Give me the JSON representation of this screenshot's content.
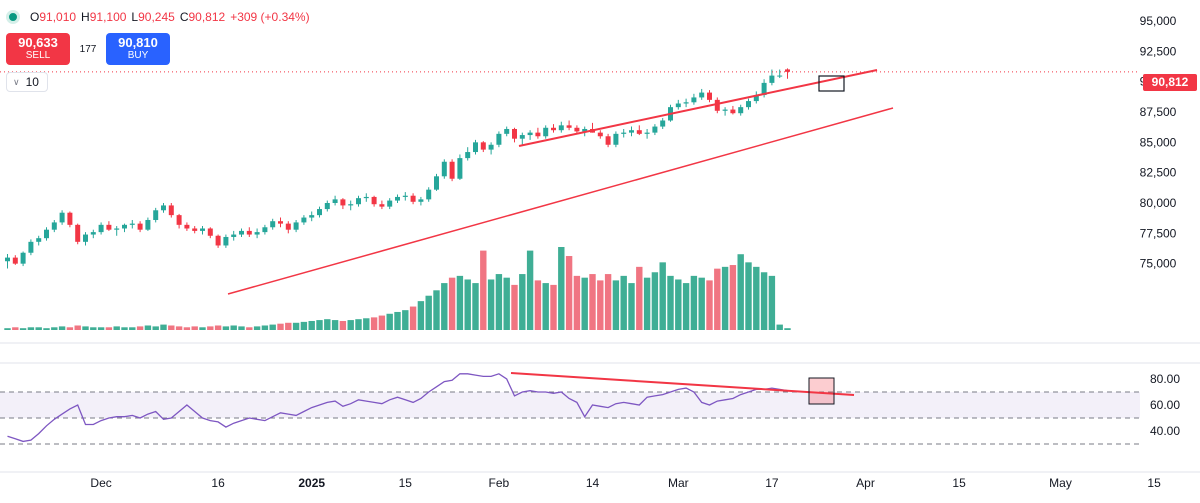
{
  "header": {
    "open_label": "O",
    "open_value": "91,010",
    "high_label": "H",
    "high_value": "91,100",
    "low_label": "L",
    "low_value": "90,245",
    "close_label": "C",
    "close_value": "90,812",
    "change": "+309 (+0.34%)"
  },
  "trade": {
    "sell_price": "90,633",
    "sell_label": "SELL",
    "spread": "177",
    "buy_price": "90,810",
    "buy_label": "BUY",
    "quantity": "10"
  },
  "last_price_label": "90,812",
  "colors": {
    "up": "#26a69a",
    "down": "#f23645",
    "volume_up": "#3fae95",
    "volume_down": "#f07582",
    "rsi_line": "#7e57c2",
    "trendline": "#f23645"
  },
  "chart_data": [
    {
      "type": "candlestick",
      "title": "",
      "y_axis_ticks": [
        95000,
        92500,
        90000,
        87500,
        85000,
        82500,
        80000,
        77500,
        75000
      ],
      "ylim": [
        73000,
        96000
      ],
      "x_tick_labels": [
        "15",
        "Dec",
        "16",
        "2025",
        "15",
        "Feb",
        "14",
        "Mar",
        "17",
        "Apr",
        "15",
        "May",
        "15"
      ],
      "x_tick_index": [
        -3,
        12,
        27,
        39,
        51,
        63,
        75,
        86,
        98,
        110,
        122,
        135,
        147
      ],
      "last_price": 90812,
      "candles": [
        [
          75200,
          75800,
          74600,
          75500
        ],
        [
          75500,
          75700,
          74900,
          75000
        ],
        [
          75000,
          76000,
          74800,
          75900
        ],
        [
          75900,
          77000,
          75700,
          76800
        ],
        [
          76800,
          77300,
          76500,
          77100
        ],
        [
          77100,
          78000,
          76900,
          77800
        ],
        [
          77800,
          78600,
          77600,
          78400
        ],
        [
          78400,
          79400,
          78200,
          79200
        ],
        [
          79200,
          79300,
          78000,
          78200
        ],
        [
          78200,
          78300,
          76600,
          76800
        ],
        [
          76800,
          77600,
          76500,
          77400
        ],
        [
          77400,
          77800,
          77100,
          77600
        ],
        [
          77600,
          78400,
          77400,
          78200
        ],
        [
          78200,
          78500,
          77700,
          77800
        ],
        [
          77800,
          78100,
          77300,
          77900
        ],
        [
          77900,
          78300,
          77600,
          78200
        ],
        [
          78200,
          78600,
          77900,
          78300
        ],
        [
          78300,
          78500,
          77600,
          77800
        ],
        [
          77800,
          78800,
          77700,
          78600
        ],
        [
          78600,
          79600,
          78400,
          79400
        ],
        [
          79400,
          80000,
          79200,
          79800
        ],
        [
          79800,
          80000,
          78800,
          79000
        ],
        [
          79000,
          79100,
          77900,
          78200
        ],
        [
          78200,
          78400,
          77700,
          77900
        ],
        [
          77900,
          78100,
          77500,
          77700
        ],
        [
          77700,
          78100,
          77400,
          77900
        ],
        [
          77900,
          78000,
          77100,
          77300
        ],
        [
          77300,
          77400,
          76300,
          76500
        ],
        [
          76500,
          77400,
          76300,
          77200
        ],
        [
          77200,
          77700,
          76900,
          77400
        ],
        [
          77400,
          77900,
          77200,
          77700
        ],
        [
          77700,
          78000,
          77200,
          77400
        ],
        [
          77400,
          77900,
          77100,
          77600
        ],
        [
          77600,
          78200,
          77400,
          78000
        ],
        [
          78000,
          78700,
          77800,
          78500
        ],
        [
          78500,
          78800,
          78000,
          78300
        ],
        [
          78300,
          78500,
          77500,
          77800
        ],
        [
          77800,
          78600,
          77600,
          78400
        ],
        [
          78400,
          79000,
          78200,
          78800
        ],
        [
          78800,
          79300,
          78500,
          79000
        ],
        [
          79000,
          79700,
          78800,
          79500
        ],
        [
          79500,
          80200,
          79300,
          80000
        ],
        [
          80000,
          80600,
          79800,
          80300
        ],
        [
          80300,
          80400,
          79500,
          79800
        ],
        [
          79800,
          80200,
          79400,
          79900
        ],
        [
          79900,
          80600,
          79700,
          80400
        ],
        [
          80400,
          80800,
          80100,
          80500
        ],
        [
          80500,
          80600,
          79700,
          79900
        ],
        [
          79900,
          80200,
          79500,
          79700
        ],
        [
          79700,
          80400,
          79500,
          80200
        ],
        [
          80200,
          80700,
          80000,
          80500
        ],
        [
          80500,
          80900,
          80200,
          80600
        ],
        [
          80600,
          80800,
          79900,
          80100
        ],
        [
          80100,
          80500,
          79800,
          80300
        ],
        [
          80300,
          81300,
          80100,
          81100
        ],
        [
          81100,
          82400,
          81000,
          82200
        ],
        [
          82200,
          83600,
          82000,
          83400
        ],
        [
          83400,
          83600,
          81800,
          82000
        ],
        [
          82000,
          84000,
          81900,
          83700
        ],
        [
          83700,
          84600,
          83500,
          84200
        ],
        [
          84200,
          85200,
          84000,
          85000
        ],
        [
          85000,
          85100,
          84200,
          84400
        ],
        [
          84400,
          85000,
          84000,
          84800
        ],
        [
          84800,
          85900,
          84600,
          85700
        ],
        [
          85700,
          86300,
          85500,
          86100
        ],
        [
          86100,
          86200,
          85000,
          85300
        ],
        [
          85300,
          85800,
          84700,
          85600
        ],
        [
          85600,
          86000,
          85200,
          85800
        ],
        [
          85800,
          86200,
          85300,
          85500
        ],
        [
          85500,
          86400,
          85300,
          86200
        ],
        [
          86200,
          86500,
          85800,
          86000
        ],
        [
          86000,
          86700,
          85800,
          86400
        ],
        [
          86400,
          86800,
          86000,
          86200
        ],
        [
          86200,
          86400,
          85700,
          85900
        ],
        [
          85900,
          86300,
          85500,
          86100
        ],
        [
          86100,
          86600,
          85800,
          85800
        ],
        [
          85800,
          86000,
          85300,
          85500
        ],
        [
          85500,
          85700,
          84600,
          84800
        ],
        [
          84800,
          85900,
          84600,
          85700
        ],
        [
          85700,
          86100,
          85400,
          85800
        ],
        [
          85800,
          86300,
          85500,
          86000
        ],
        [
          86000,
          86400,
          85600,
          85700
        ],
        [
          85700,
          86100,
          85300,
          85800
        ],
        [
          85800,
          86500,
          85600,
          86300
        ],
        [
          86300,
          87000,
          86100,
          86800
        ],
        [
          86800,
          88100,
          86700,
          87900
        ],
        [
          87900,
          88500,
          87700,
          88200
        ],
        [
          88200,
          88600,
          87900,
          88300
        ],
        [
          88300,
          89000,
          88100,
          88700
        ],
        [
          88700,
          89400,
          88500,
          89100
        ],
        [
          89100,
          89300,
          88300,
          88500
        ],
        [
          88500,
          88700,
          87400,
          87600
        ],
        [
          87600,
          87900,
          87200,
          87700
        ],
        [
          87700,
          88000,
          87300,
          87400
        ],
        [
          87400,
          88100,
          87200,
          87900
        ],
        [
          87900,
          88600,
          87700,
          88400
        ],
        [
          88400,
          89200,
          88200,
          88900
        ],
        [
          88900,
          90200,
          88700,
          89900
        ],
        [
          89900,
          91000,
          89700,
          90500
        ],
        [
          90500,
          91000,
          90300,
          90503
        ],
        [
          91010,
          91100,
          90245,
          90812
        ]
      ],
      "volume": [
        2,
        3,
        2,
        3,
        3,
        2,
        3,
        4,
        3,
        5,
        4,
        3,
        3,
        3,
        4,
        3,
        3,
        4,
        5,
        4,
        6,
        5,
        4,
        3,
        4,
        3,
        4,
        5,
        4,
        5,
        4,
        3,
        4,
        5,
        6,
        7,
        8,
        8,
        9,
        10,
        11,
        12,
        11,
        10,
        11,
        12,
        13,
        14,
        16,
        18,
        20,
        22,
        26,
        32,
        38,
        44,
        52,
        58,
        60,
        56,
        52,
        88,
        56,
        62,
        58,
        50,
        62,
        88,
        55,
        52,
        50,
        92,
        82,
        60,
        58,
        62,
        55,
        62,
        55,
        60,
        52,
        70,
        58,
        64,
        75,
        60,
        56,
        52,
        60,
        58,
        55,
        68,
        70,
        72,
        84,
        75,
        70,
        64,
        60,
        6,
        2
      ],
      "volume_up_flags": [
        1,
        0,
        1,
        1,
        1,
        1,
        1,
        1,
        0,
        0,
        1,
        1,
        1,
        0,
        1,
        1,
        1,
        0,
        1,
        1,
        1,
        0,
        0,
        0,
        0,
        1,
        0,
        0,
        1,
        1,
        1,
        0,
        1,
        1,
        1,
        0,
        0,
        1,
        1,
        1,
        1,
        1,
        1,
        0,
        1,
        1,
        1,
        0,
        0,
        1,
        1,
        1,
        0,
        1,
        1,
        1,
        1,
        0,
        1,
        1,
        1,
        0,
        1,
        1,
        1,
        0,
        1,
        1,
        0,
        1,
        0,
        1,
        0,
        0,
        1,
        0,
        0,
        0,
        1,
        1,
        1,
        0,
        1,
        1,
        1,
        1,
        1,
        1,
        1,
        1,
        0,
        0,
        1,
        0,
        1,
        1,
        1,
        1,
        1,
        1,
        1
      ]
    },
    {
      "type": "line",
      "title": "",
      "y_axis_ticks": [
        80,
        60,
        40
      ],
      "ylim": [
        30,
        85
      ],
      "band": [
        50,
        70
      ],
      "levels": [
        70,
        50,
        30
      ],
      "values": [
        36,
        34,
        32,
        33,
        38,
        44,
        49,
        53,
        57,
        60,
        45,
        45,
        48,
        50,
        51,
        51,
        52,
        50,
        53,
        55,
        49,
        50,
        55,
        60,
        55,
        50,
        48,
        47,
        43,
        46,
        48,
        50,
        49,
        48,
        51,
        54,
        53,
        52,
        55,
        58,
        60,
        62,
        63,
        59,
        61,
        64,
        63,
        62,
        61,
        64,
        66,
        64,
        62,
        65,
        70,
        74,
        78,
        79,
        84,
        84,
        83,
        82,
        82,
        84,
        80,
        67,
        70,
        71,
        70,
        70,
        69,
        70,
        65,
        62,
        51,
        60,
        59,
        58,
        61,
        62,
        61,
        60,
        66,
        67,
        68,
        70,
        72,
        73,
        70,
        62,
        60,
        63,
        64,
        65,
        68,
        70,
        72,
        72,
        73,
        72,
        71
      ]
    }
  ]
}
